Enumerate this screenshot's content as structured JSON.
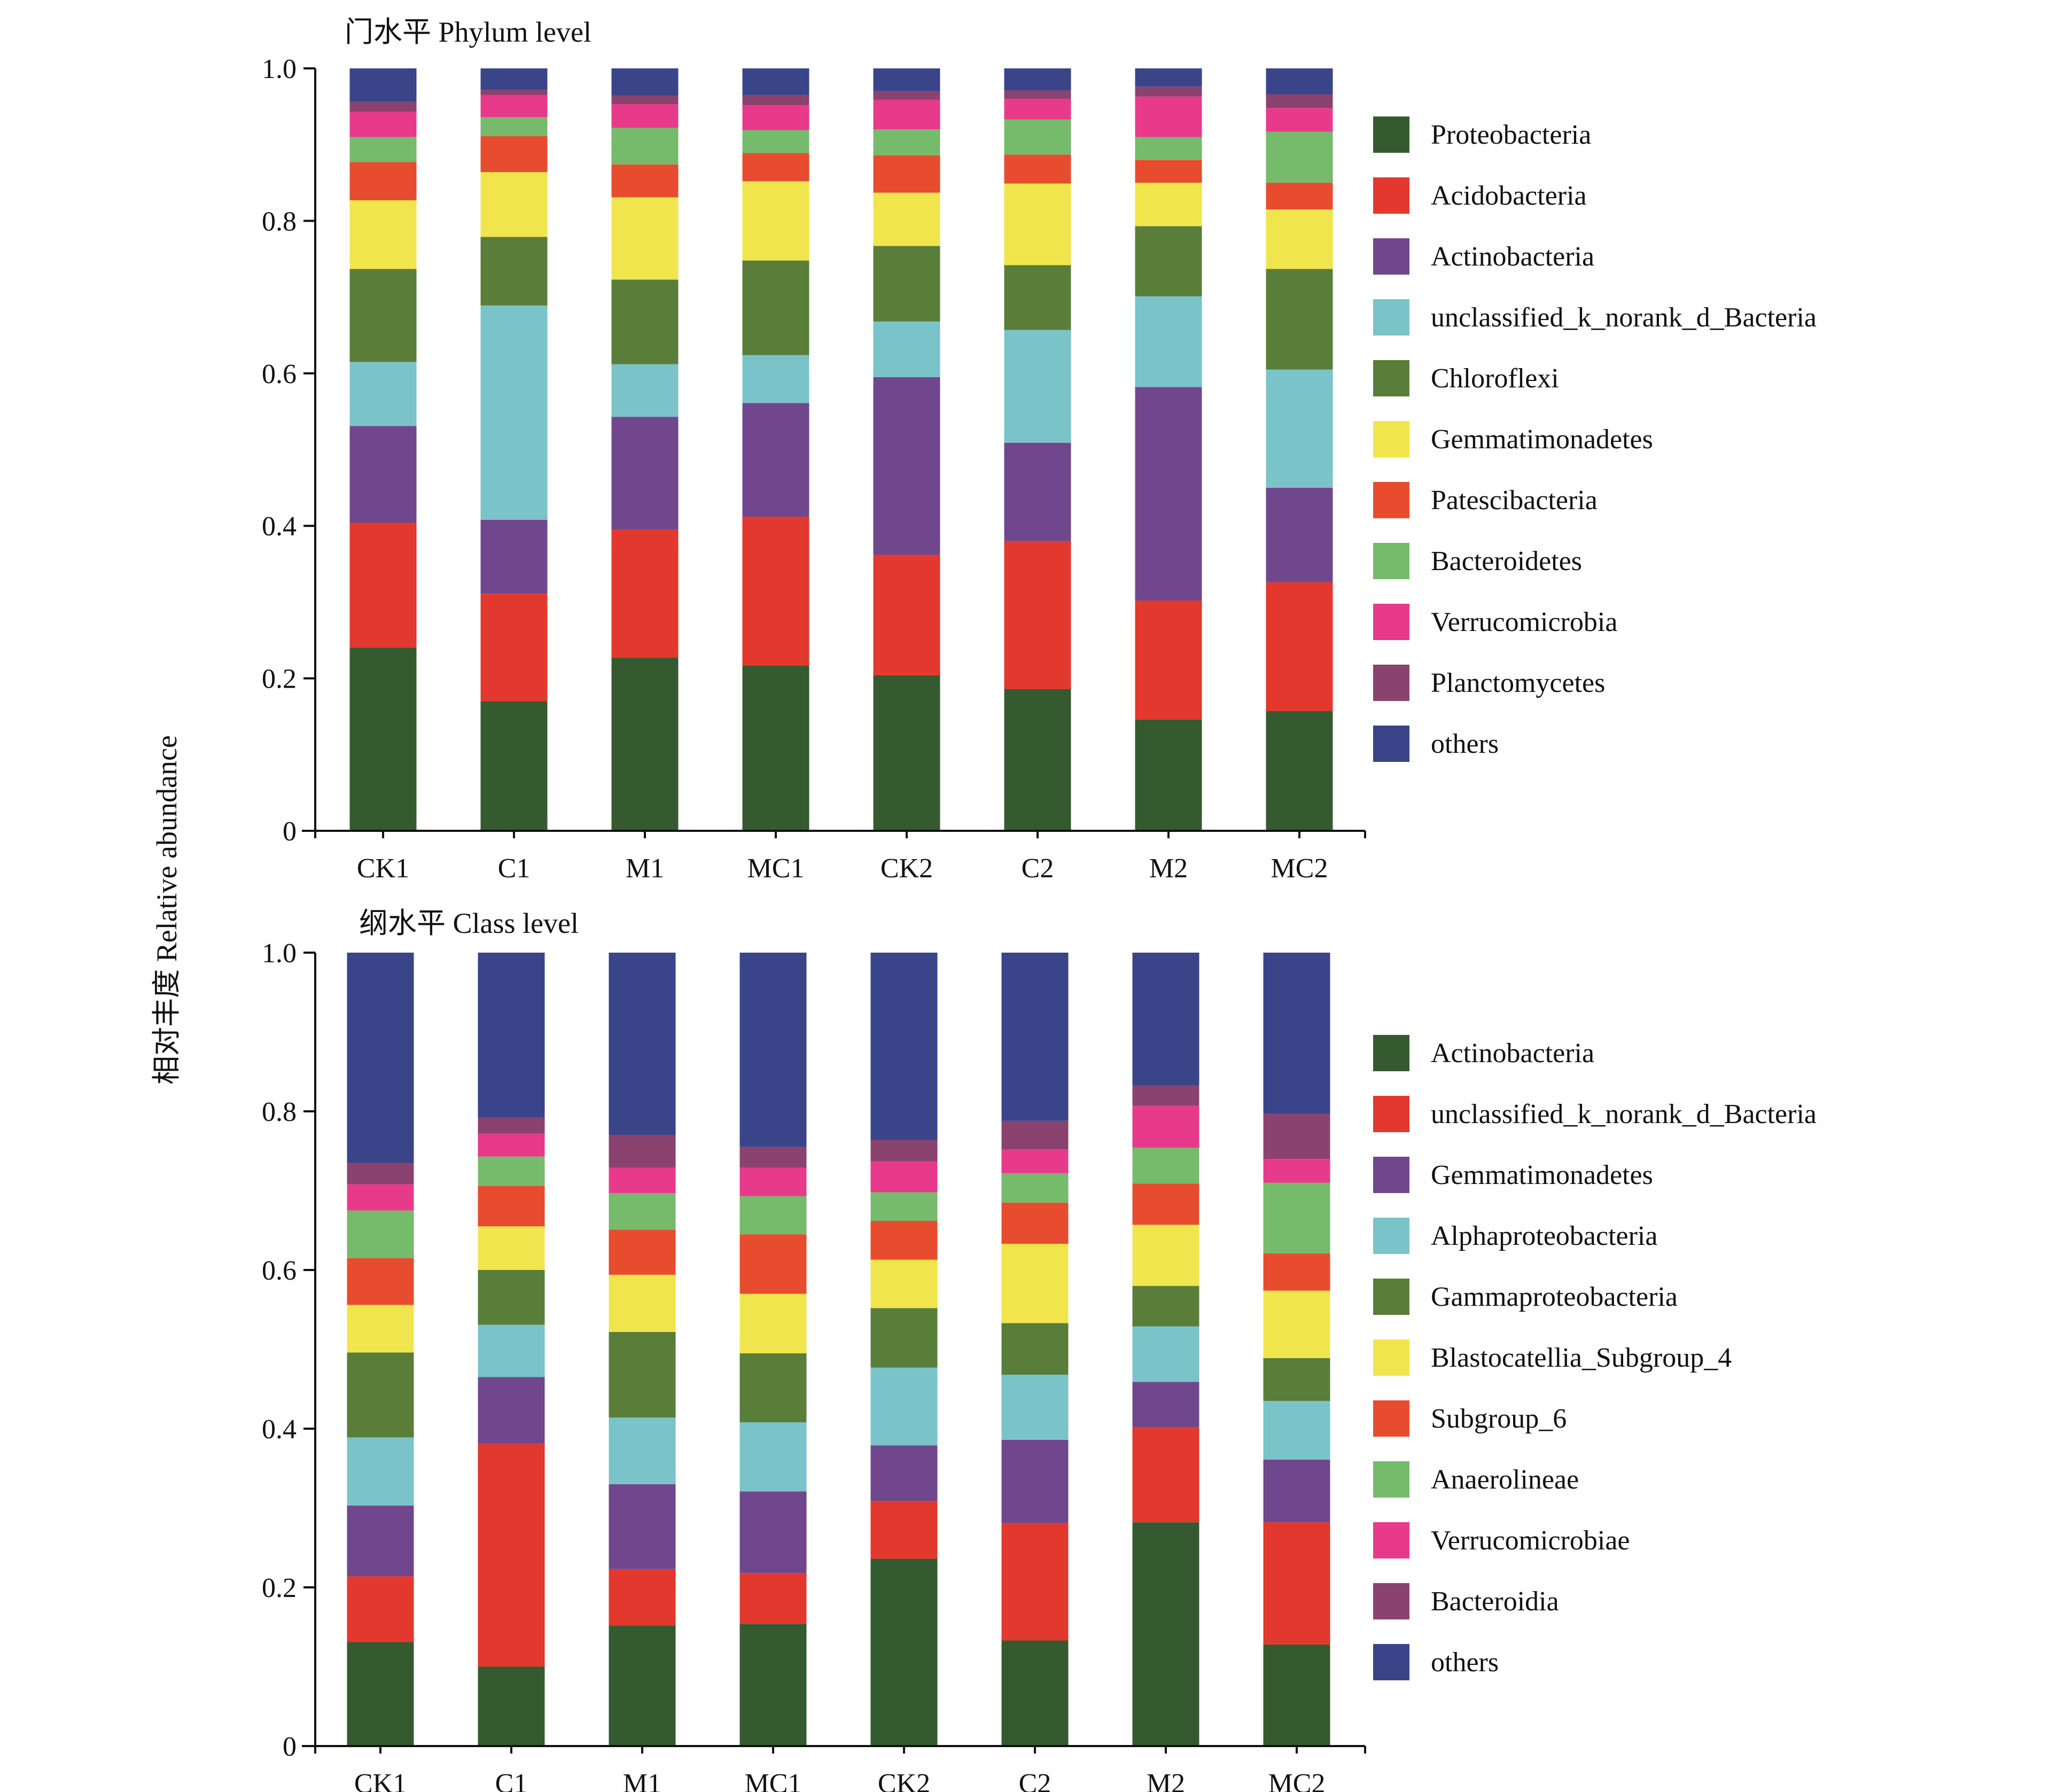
{
  "ylabel": "相对丰度 Relative abundance",
  "colors": {
    "dark_green": "#355a30",
    "red": "#e2382d",
    "purple": "#70478c",
    "cyan": "#7ac3c8",
    "green": "#5a7e39",
    "yellow": "#f0e54c",
    "orange": "#e84c2e",
    "light_green": "#76ba6c",
    "pink": "#e83a8a",
    "plum": "#8a426f",
    "navy": "#394489"
  },
  "chart_data": [
    {
      "type": "bar",
      "stacked": true,
      "title": "门水平 Phylum level",
      "ylim": [
        0,
        1.0
      ],
      "yticks": [
        "0",
        "0.2",
        "0.4",
        "0.6",
        "0.8",
        "1.0"
      ],
      "yticks_values": [
        0,
        0.2,
        0.4,
        0.6,
        0.8,
        1.0
      ],
      "legend_position": "right",
      "categories": [
        "CK1",
        "C1",
        "M1",
        "MC1",
        "CK2",
        "C2",
        "M2",
        "MC2"
      ],
      "series": [
        {
          "name": "Proteobacteria",
          "color": "#355a30",
          "values": [
            0.24,
            0.17,
            0.227,
            0.217,
            0.204,
            0.186,
            0.146,
            0.157
          ]
        },
        {
          "name": "Acidobacteria",
          "color": "#e2382d",
          "values": [
            0.164,
            0.141,
            0.168,
            0.195,
            0.158,
            0.194,
            0.156,
            0.169
          ]
        },
        {
          "name": "Actinobacteria",
          "color": "#70478c",
          "values": [
            0.127,
            0.097,
            0.148,
            0.149,
            0.233,
            0.129,
            0.28,
            0.124
          ]
        },
        {
          "name": "unclassified_k_norank_d_Bacteria",
          "color": "#7ac3c8",
          "values": [
            0.084,
            0.281,
            0.069,
            0.063,
            0.073,
            0.148,
            0.119,
            0.155
          ]
        },
        {
          "name": "Chloroflexi",
          "color": "#5a7e39",
          "values": [
            0.122,
            0.09,
            0.111,
            0.124,
            0.099,
            0.085,
            0.092,
            0.132
          ]
        },
        {
          "name": "Gemmatimonadetes",
          "color": "#f0e54c",
          "values": [
            0.09,
            0.085,
            0.108,
            0.104,
            0.07,
            0.107,
            0.057,
            0.078
          ]
        },
        {
          "name": "Patescibacteria",
          "color": "#e84c2e",
          "values": [
            0.05,
            0.047,
            0.043,
            0.037,
            0.049,
            0.038,
            0.03,
            0.035
          ]
        },
        {
          "name": "Bacteroidetes",
          "color": "#76ba6c",
          "values": [
            0.033,
            0.025,
            0.048,
            0.03,
            0.034,
            0.046,
            0.03,
            0.067
          ]
        },
        {
          "name": "Verrucomicrobia",
          "color": "#e83a8a",
          "values": [
            0.033,
            0.029,
            0.031,
            0.033,
            0.039,
            0.027,
            0.053,
            0.031
          ]
        },
        {
          "name": "Planctomycetes",
          "color": "#8a426f",
          "values": [
            0.013,
            0.007,
            0.011,
            0.013,
            0.011,
            0.011,
            0.013,
            0.018
          ]
        },
        {
          "name": "others",
          "color": "#394489",
          "values": [
            0.044,
            0.028,
            0.036,
            0.035,
            0.03,
            0.029,
            0.024,
            0.034
          ]
        }
      ]
    },
    {
      "type": "bar",
      "stacked": true,
      "title": "纲水平 Class level",
      "ylim": [
        0,
        1.0
      ],
      "yticks": [
        "0",
        "0.2",
        "0.4",
        "0.6",
        "0.8",
        "1.0"
      ],
      "yticks_values": [
        0,
        0.2,
        0.4,
        0.6,
        0.8,
        1.0
      ],
      "legend_position": "right",
      "categories": [
        "CK1",
        "C1",
        "M1",
        "MC1",
        "CK2",
        "C2",
        "M2",
        "MC2"
      ],
      "series": [
        {
          "name": "Actinobacteria",
          "color": "#355a30",
          "values": [
            0.131,
            0.1,
            0.152,
            0.154,
            0.236,
            0.133,
            0.282,
            0.128
          ]
        },
        {
          "name": "unclassified_k_norank_d_Bacteria",
          "color": "#e2382d",
          "values": [
            0.083,
            0.281,
            0.071,
            0.064,
            0.073,
            0.148,
            0.12,
            0.154
          ]
        },
        {
          "name": "Gemmatimonadetes",
          "color": "#70478c",
          "values": [
            0.089,
            0.084,
            0.107,
            0.103,
            0.07,
            0.105,
            0.057,
            0.079
          ]
        },
        {
          "name": "Alphaproteobacteria",
          "color": "#7ac3c8",
          "values": [
            0.086,
            0.066,
            0.084,
            0.087,
            0.098,
            0.082,
            0.07,
            0.074
          ]
        },
        {
          "name": "Gammaproteobacteria",
          "color": "#5a7e39",
          "values": [
            0.107,
            0.069,
            0.108,
            0.087,
            0.075,
            0.065,
            0.051,
            0.054
          ]
        },
        {
          "name": "Blastocatellia_Subgroup_4",
          "color": "#f0e54c",
          "values": [
            0.06,
            0.055,
            0.072,
            0.075,
            0.061,
            0.1,
            0.077,
            0.085
          ]
        },
        {
          "name": "Subgroup_6",
          "color": "#e84c2e",
          "values": [
            0.059,
            0.051,
            0.057,
            0.075,
            0.049,
            0.052,
            0.052,
            0.047
          ]
        },
        {
          "name": "Anaerolineae",
          "color": "#76ba6c",
          "values": [
            0.06,
            0.037,
            0.046,
            0.048,
            0.036,
            0.037,
            0.045,
            0.089
          ]
        },
        {
          "name": "Verrucomicrobiae",
          "color": "#e83a8a",
          "values": [
            0.033,
            0.029,
            0.032,
            0.036,
            0.039,
            0.03,
            0.053,
            0.03
          ]
        },
        {
          "name": "Bacteroidia",
          "color": "#8a426f",
          "values": [
            0.027,
            0.02,
            0.041,
            0.026,
            0.027,
            0.036,
            0.026,
            0.057
          ]
        },
        {
          "name": "others",
          "color": "#394489",
          "values": [
            0.265,
            0.208,
            0.23,
            0.245,
            0.236,
            0.212,
            0.167,
            0.203
          ]
        }
      ]
    }
  ]
}
